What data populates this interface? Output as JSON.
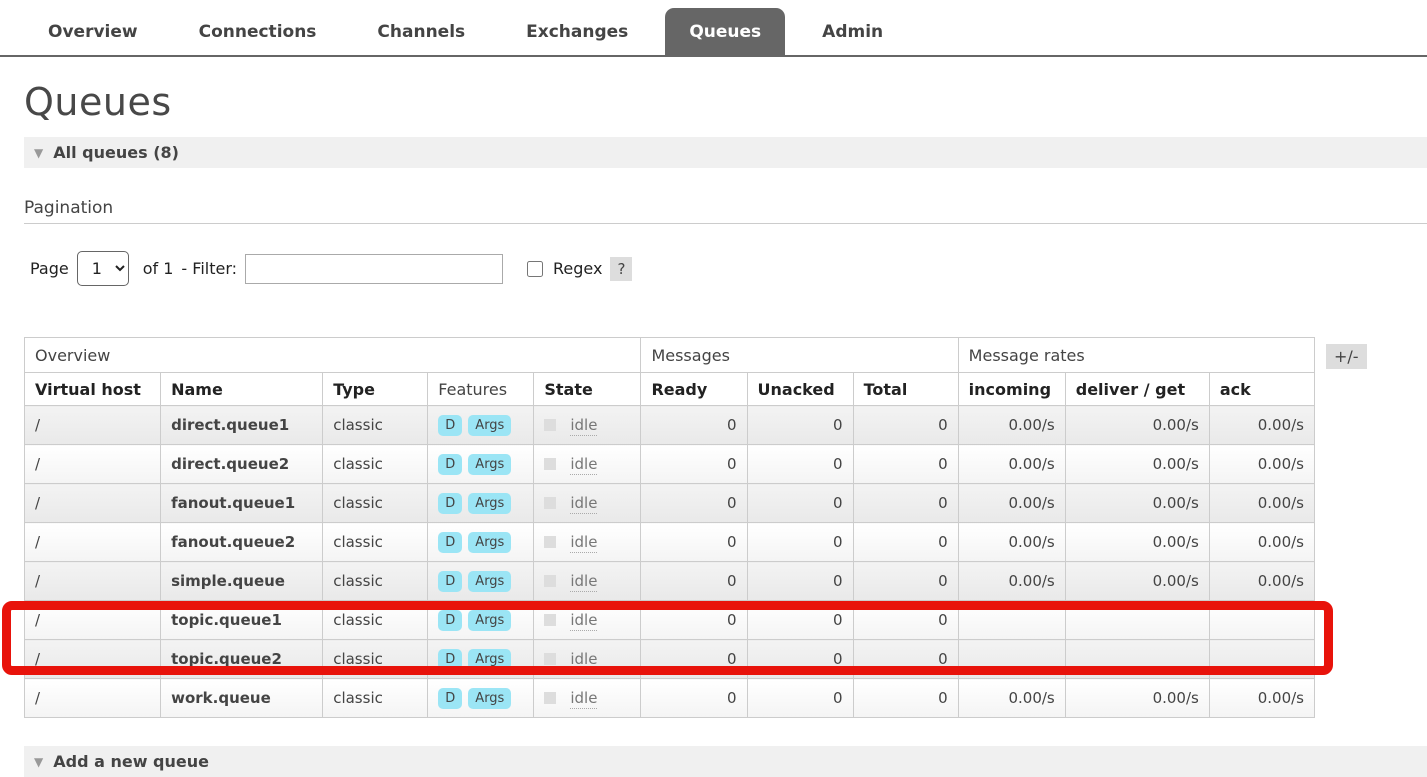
{
  "tabs": [
    {
      "label": "Overview",
      "active": false
    },
    {
      "label": "Connections",
      "active": false
    },
    {
      "label": "Channels",
      "active": false
    },
    {
      "label": "Exchanges",
      "active": false
    },
    {
      "label": "Queues",
      "active": true
    },
    {
      "label": "Admin",
      "active": false
    }
  ],
  "page": {
    "title": "Queues"
  },
  "sections": {
    "all_queues_label": "All queues (8)",
    "add_queue_label": "Add a new queue"
  },
  "pagination": {
    "heading": "Pagination",
    "page_label": "Page",
    "page_selected": "1",
    "page_options": [
      "1"
    ],
    "of_label": "of 1",
    "filter_label": "- Filter:",
    "filter_value": "",
    "regex_label": "Regex",
    "help_label": "?"
  },
  "table": {
    "column_toggle_label": "+/-",
    "groups": [
      {
        "label": "Overview",
        "span": 5
      },
      {
        "label": "Messages",
        "span": 3
      },
      {
        "label": "Message rates",
        "span": 3
      }
    ],
    "columns": [
      "Virtual host",
      "Name",
      "Type",
      "Features",
      "State",
      "Ready",
      "Unacked",
      "Total",
      "incoming",
      "deliver / get",
      "ack"
    ],
    "rows": [
      {
        "vhost": "/",
        "name": "direct.queue1",
        "type": "classic",
        "features": [
          "D",
          "Args"
        ],
        "state": "idle",
        "ready": "0",
        "unacked": "0",
        "total": "0",
        "incoming": "0.00/s",
        "deliver_get": "0.00/s",
        "ack": "0.00/s"
      },
      {
        "vhost": "/",
        "name": "direct.queue2",
        "type": "classic",
        "features": [
          "D",
          "Args"
        ],
        "state": "idle",
        "ready": "0",
        "unacked": "0",
        "total": "0",
        "incoming": "0.00/s",
        "deliver_get": "0.00/s",
        "ack": "0.00/s"
      },
      {
        "vhost": "/",
        "name": "fanout.queue1",
        "type": "classic",
        "features": [
          "D",
          "Args"
        ],
        "state": "idle",
        "ready": "0",
        "unacked": "0",
        "total": "0",
        "incoming": "0.00/s",
        "deliver_get": "0.00/s",
        "ack": "0.00/s"
      },
      {
        "vhost": "/",
        "name": "fanout.queue2",
        "type": "classic",
        "features": [
          "D",
          "Args"
        ],
        "state": "idle",
        "ready": "0",
        "unacked": "0",
        "total": "0",
        "incoming": "0.00/s",
        "deliver_get": "0.00/s",
        "ack": "0.00/s"
      },
      {
        "vhost": "/",
        "name": "simple.queue",
        "type": "classic",
        "features": [
          "D",
          "Args"
        ],
        "state": "idle",
        "ready": "0",
        "unacked": "0",
        "total": "0",
        "incoming": "0.00/s",
        "deliver_get": "0.00/s",
        "ack": "0.00/s"
      },
      {
        "vhost": "/",
        "name": "topic.queue1",
        "type": "classic",
        "features": [
          "D",
          "Args"
        ],
        "state": "idle",
        "ready": "0",
        "unacked": "0",
        "total": "0",
        "incoming": "",
        "deliver_get": "",
        "ack": ""
      },
      {
        "vhost": "/",
        "name": "topic.queue2",
        "type": "classic",
        "features": [
          "D",
          "Args"
        ],
        "state": "idle",
        "ready": "0",
        "unacked": "0",
        "total": "0",
        "incoming": "",
        "deliver_get": "",
        "ack": ""
      },
      {
        "vhost": "/",
        "name": "work.queue",
        "type": "classic",
        "features": [
          "D",
          "Args"
        ],
        "state": "idle",
        "ready": "0",
        "unacked": "0",
        "total": "0",
        "incoming": "0.00/s",
        "deliver_get": "0.00/s",
        "ack": "0.00/s"
      }
    ]
  },
  "annotation": {
    "highlighted_rows": [
      "topic.queue1",
      "topic.queue2"
    ]
  },
  "colors": {
    "accent_red": "#e8130b",
    "badge_bg": "#9be5f5",
    "active_tab_bg": "#666666",
    "section_bar_bg": "#f0f0f0",
    "help_badge_bg": "#dddddd"
  }
}
